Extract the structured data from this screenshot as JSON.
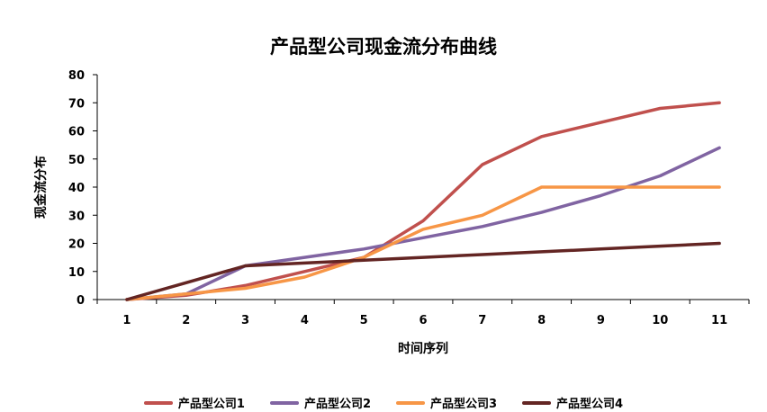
{
  "chart_data": {
    "type": "line",
    "title": "产品型公司现金流分布曲线",
    "xlabel": "时间序列",
    "ylabel": "现金流分布",
    "categories": [
      "1",
      "2",
      "3",
      "4",
      "5",
      "6",
      "7",
      "8",
      "9",
      "10",
      "11"
    ],
    "ylim": [
      0,
      80
    ],
    "yticks": [
      0,
      10,
      20,
      30,
      40,
      50,
      60,
      70,
      80
    ],
    "grid": false,
    "legend_position": "bottom",
    "series": [
      {
        "name": "产品型公司1",
        "color": "#c0504d",
        "values": [
          0,
          1.5,
          5,
          10,
          15,
          28,
          48,
          58,
          63,
          68,
          70
        ]
      },
      {
        "name": "产品型公司2",
        "color": "#8064a2",
        "values": [
          0,
          2,
          12,
          15,
          18,
          22,
          26,
          31,
          37,
          44,
          54
        ]
      },
      {
        "name": "产品型公司3",
        "color": "#f79646",
        "values": [
          0,
          2,
          4,
          8,
          15,
          25,
          30,
          40,
          40,
          40,
          40
        ]
      },
      {
        "name": "产品型公司4",
        "color": "#632523",
        "values": [
          0,
          6,
          12,
          13,
          14,
          15,
          16,
          17,
          18,
          19,
          20
        ]
      }
    ]
  }
}
